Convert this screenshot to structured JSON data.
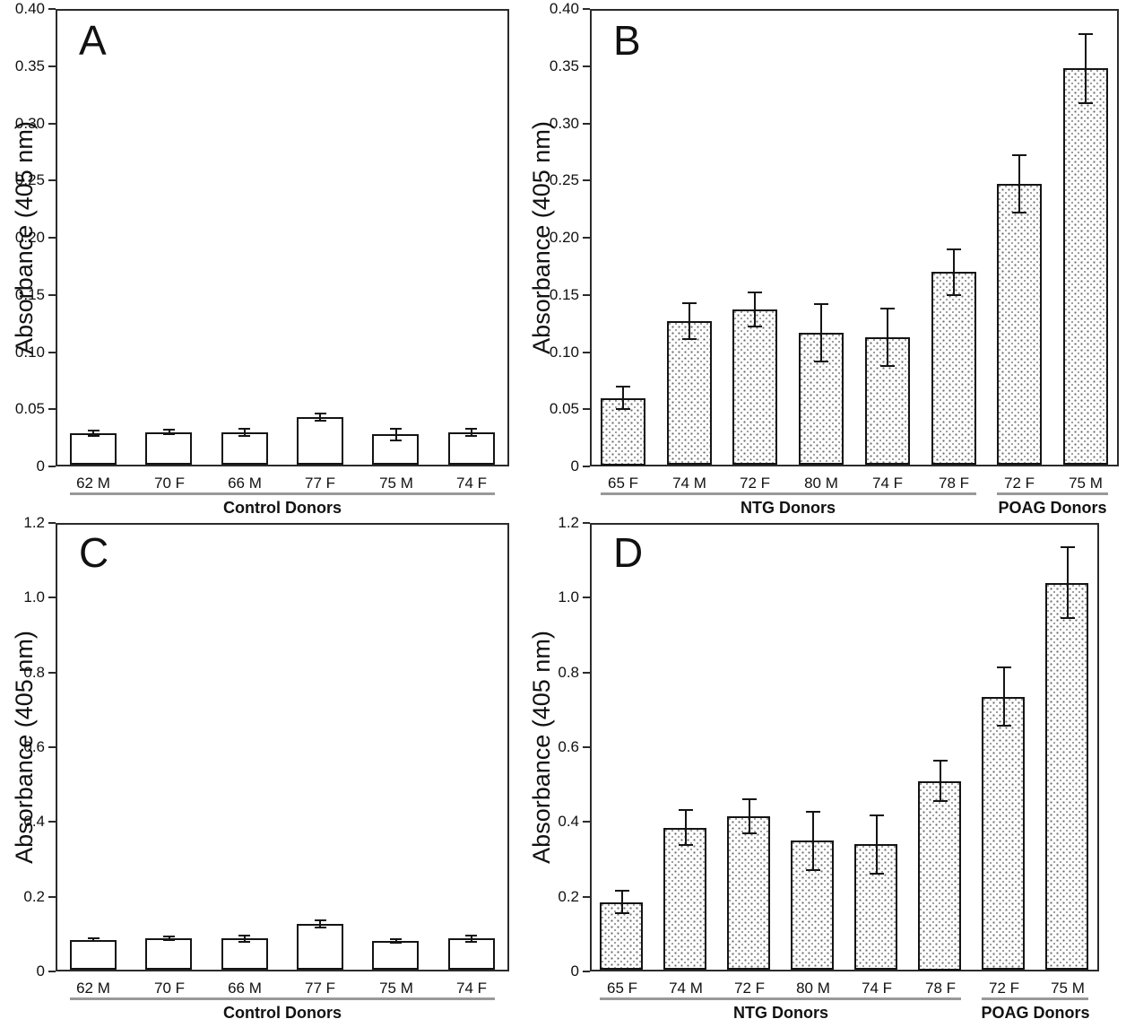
{
  "figure": {
    "background": "#ffffff",
    "text_color": "#111111",
    "axis_color": "#2b2b2b",
    "group_line_color": "#999999",
    "stipple_dot_color": "#6e6e6e"
  },
  "chart_data": [
    {
      "type": "bar",
      "panel": "A",
      "title": "",
      "xlabel": "",
      "ylabel": "Absorbance (405 nm)",
      "ylim": [
        0,
        0.4
      ],
      "grid": false,
      "bar_fill": "plain",
      "ytick_values": [
        0,
        0.05,
        0.1,
        0.15,
        0.2,
        0.25,
        0.3,
        0.35,
        0.4
      ],
      "ytick_labels": [
        "0",
        "0.05",
        "0.10",
        "0.15",
        "0.20",
        "0.25",
        "0.30",
        "0.35",
        "0.40"
      ],
      "categories": [
        "62 M",
        "70 F",
        "66 M",
        "77 F",
        "75 M",
        "74 F"
      ],
      "values": [
        0.029,
        0.03,
        0.03,
        0.043,
        0.028,
        0.03
      ],
      "errors": [
        0.002,
        0.002,
        0.003,
        0.003,
        0.005,
        0.003
      ],
      "groups": [
        {
          "label": "Control Donors",
          "from": 0,
          "to": 5
        }
      ]
    },
    {
      "type": "bar",
      "panel": "B",
      "title": "",
      "xlabel": "",
      "ylabel": "Absorbance (405 nm)",
      "ylim": [
        0,
        0.4
      ],
      "grid": false,
      "bar_fill": "dotted",
      "ytick_values": [
        0,
        0.05,
        0.1,
        0.15,
        0.2,
        0.25,
        0.3,
        0.35,
        0.4
      ],
      "ytick_labels": [
        "0",
        "0.05",
        "0.10",
        "0.15",
        "0.20",
        "0.25",
        "0.30",
        "0.35",
        "0.40"
      ],
      "categories": [
        "65 F",
        "74 M",
        "72 F",
        "80 M",
        "74 F",
        "78 F",
        "72 F",
        "75 M"
      ],
      "values": [
        0.06,
        0.127,
        0.137,
        0.117,
        0.113,
        0.17,
        0.247,
        0.348
      ],
      "errors": [
        0.01,
        0.016,
        0.015,
        0.025,
        0.025,
        0.02,
        0.025,
        0.03
      ],
      "groups": [
        {
          "label": "NTG Donors",
          "from": 0,
          "to": 5
        },
        {
          "label": "POAG Donors",
          "from": 6,
          "to": 7
        }
      ]
    },
    {
      "type": "bar",
      "panel": "C",
      "title": "",
      "xlabel": "",
      "ylabel": "Absorbance (405 nm)",
      "ylim": [
        0,
        1.2
      ],
      "grid": false,
      "bar_fill": "plain",
      "ytick_values": [
        0,
        0.2,
        0.4,
        0.6,
        0.8,
        1.0,
        1.2
      ],
      "ytick_labels": [
        "0",
        "0.2",
        "0.4",
        "0.6",
        "0.8",
        "1.0",
        "1.2"
      ],
      "categories": [
        "62 M",
        "70 F",
        "66 M",
        "77 F",
        "75 M",
        "74 F"
      ],
      "values": [
        0.085,
        0.088,
        0.088,
        0.128,
        0.081,
        0.088
      ],
      "errors": [
        0.004,
        0.005,
        0.008,
        0.01,
        0.005,
        0.008
      ],
      "groups": [
        {
          "label": "Control Donors",
          "from": 0,
          "to": 5
        }
      ]
    },
    {
      "type": "bar",
      "panel": "D",
      "title": "",
      "xlabel": "",
      "ylabel": "Absorbance (405 nm)",
      "ylim": [
        0,
        1.2
      ],
      "grid": false,
      "bar_fill": "dotted",
      "ytick_values": [
        0,
        0.2,
        0.4,
        0.6,
        0.8,
        1.0,
        1.2
      ],
      "ytick_labels": [
        "0",
        "0.2",
        "0.4",
        "0.6",
        "0.8",
        "1.0",
        "1.2"
      ],
      "categories": [
        "65 F",
        "74 M",
        "72 F",
        "80 M",
        "74 F",
        "78 F",
        "72 F",
        "75 M"
      ],
      "values": [
        0.185,
        0.385,
        0.415,
        0.35,
        0.34,
        0.51,
        0.735,
        1.04
      ],
      "errors": [
        0.03,
        0.047,
        0.045,
        0.078,
        0.078,
        0.055,
        0.078,
        0.095
      ],
      "groups": [
        {
          "label": "NTG Donors",
          "from": 0,
          "to": 5
        },
        {
          "label": "POAG Donors",
          "from": 6,
          "to": 7
        }
      ]
    }
  ]
}
